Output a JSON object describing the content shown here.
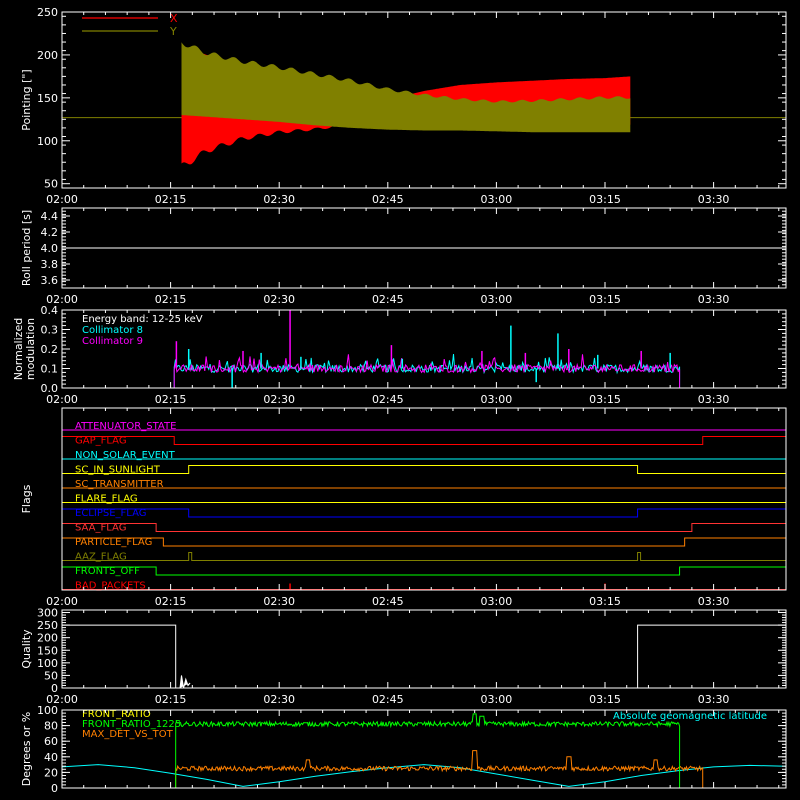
{
  "time_ticks": [
    "02:00",
    "02:15",
    "02:30",
    "02:45",
    "03:00",
    "03:15",
    "03:30"
  ],
  "time_range_minutes": [
    0,
    100
  ],
  "panels": [
    {
      "id": "pointing",
      "ylabel": "Pointing [\"]",
      "ylim": [
        45,
        250
      ],
      "yticks": [
        50,
        100,
        150,
        200,
        250
      ],
      "legend": [
        {
          "label": "X",
          "color": "#ff0000"
        },
        {
          "label": "Y",
          "color": "#808000"
        }
      ],
      "baseline": 127,
      "envelope_start_min": 16.5,
      "envelope_end_min": 78.5,
      "x_series": {
        "name": "X",
        "color": "#ff0000",
        "upper": [
          [
            16.5,
            210
          ],
          [
            20,
            200
          ],
          [
            25,
            185
          ],
          [
            30,
            175
          ],
          [
            35,
            165
          ],
          [
            40,
            155
          ],
          [
            45,
            148
          ],
          [
            50,
            158
          ],
          [
            55,
            165
          ],
          [
            60,
            168
          ],
          [
            65,
            170
          ],
          [
            70,
            172
          ],
          [
            75,
            173
          ],
          [
            78.5,
            175
          ]
        ],
        "lower": [
          [
            16.5,
            65
          ],
          [
            20,
            85
          ],
          [
            25,
            100
          ],
          [
            30,
            108
          ],
          [
            35,
            112
          ],
          [
            40,
            118
          ],
          [
            45,
            120
          ],
          [
            50,
            118
          ],
          [
            55,
            120
          ],
          [
            60,
            122
          ],
          [
            65,
            120
          ],
          [
            70,
            118
          ],
          [
            75,
            120
          ],
          [
            78.5,
            118
          ]
        ]
      },
      "y_series": {
        "name": "Y",
        "color": "#808000",
        "upper": [
          [
            16.5,
            218
          ],
          [
            20,
            205
          ],
          [
            25,
            195
          ],
          [
            30,
            188
          ],
          [
            35,
            180
          ],
          [
            40,
            172
          ],
          [
            45,
            162
          ],
          [
            50,
            155
          ],
          [
            55,
            150
          ],
          [
            60,
            147
          ],
          [
            65,
            148
          ],
          [
            70,
            150
          ],
          [
            75,
            152
          ],
          [
            78.5,
            152
          ]
        ],
        "lower": [
          [
            16.5,
            130
          ],
          [
            20,
            128
          ],
          [
            25,
            125
          ],
          [
            30,
            122
          ],
          [
            35,
            118
          ],
          [
            40,
            115
          ],
          [
            45,
            113
          ],
          [
            50,
            112
          ],
          [
            55,
            112
          ],
          [
            60,
            111
          ],
          [
            65,
            110
          ],
          [
            70,
            110
          ],
          [
            75,
            110
          ],
          [
            78.5,
            110
          ]
        ]
      }
    },
    {
      "id": "roll",
      "ylabel": "Roll period [s]",
      "ylim": [
        3.5,
        4.5
      ],
      "yticks": [
        3.6,
        3.8,
        4.0,
        4.2,
        4.4
      ],
      "value": 4.0
    },
    {
      "id": "modulation",
      "ylabel_lines": [
        "Normalized",
        "modulation"
      ],
      "ylim": [
        0,
        0.4
      ],
      "yticks": [
        0.0,
        0.1,
        0.2,
        0.3,
        0.4
      ],
      "annotations": [
        {
          "text": "Energy band: 12-25 keV",
          "color": "#ffffff"
        },
        {
          "text": "Collimator 8",
          "color": "#00ffff"
        },
        {
          "text": "Collimator 9",
          "color": "#ff00ff"
        }
      ],
      "start_min": 15.5,
      "end_min": 85.3,
      "base_level": 0.1,
      "spikes": [
        [
          15.8,
          0.24
        ],
        [
          17.5,
          0.2
        ],
        [
          25,
          0.19
        ],
        [
          27.5,
          0.18
        ],
        [
          31.5,
          0.4
        ],
        [
          33,
          0.16
        ],
        [
          45.5,
          0.22
        ],
        [
          47,
          0.15
        ],
        [
          58,
          0.19
        ],
        [
          62,
          0.32
        ],
        [
          64,
          0.18
        ],
        [
          68.5,
          0.28
        ],
        [
          70,
          0.2
        ],
        [
          74,
          0.17
        ],
        [
          80,
          0.19
        ],
        [
          84,
          0.18
        ]
      ],
      "dips": [
        [
          23.5,
          0.0
        ],
        [
          65.5,
          0.03
        ]
      ]
    },
    {
      "id": "flags",
      "ylabel": "Flags",
      "flags": [
        {
          "label": "ATTENUATOR_STATE",
          "color": "#ff00ff",
          "steps": []
        },
        {
          "label": "GAP_FLAG",
          "color": "#ff0000",
          "steps": [
            [
              15.5,
              0
            ],
            [
              88.5,
              1
            ]
          ]
        },
        {
          "label": "NON_SOLAR_EVENT",
          "color": "#00ffff",
          "steps": []
        },
        {
          "label": "SC_IN_SUNLIGHT",
          "color": "#ffff00",
          "steps": [
            [
              17.5,
              1
            ],
            [
              79.5,
              0
            ]
          ]
        },
        {
          "label": "SC_TRANSMITTER",
          "color": "#ff8000",
          "steps": []
        },
        {
          "label": "FLARE_FLAG",
          "color": "#ffff00",
          "steps": []
        },
        {
          "label": "ECLIPSE_FLAG",
          "color": "#0000ff",
          "steps": [
            [
              17.5,
              0
            ],
            [
              79.5,
              1
            ]
          ]
        },
        {
          "label": "SAA_FLAG",
          "color": "#ff3333",
          "steps": [
            [
              13,
              0
            ],
            [
              87,
              1
            ]
          ]
        },
        {
          "label": "PARTICLE_FLAG",
          "color": "#ff8000",
          "steps": [
            [
              14,
              0
            ],
            [
              86,
              1
            ]
          ]
        },
        {
          "label": "AAZ_FLAG",
          "color": "#808000",
          "pulses": [
            17.5,
            79.5
          ]
        },
        {
          "label": "FRONTS_OFF",
          "color": "#00ff00",
          "steps": [
            [
              13,
              0
            ],
            [
              85.3,
              1
            ]
          ]
        },
        {
          "label": "BAD_PACKETS",
          "color": "#ff0000",
          "ticks": [
            31.5,
            75
          ]
        }
      ]
    },
    {
      "id": "quality",
      "ylabel": "Quality",
      "ylim": [
        0,
        310
      ],
      "yticks": [
        0,
        50,
        100,
        150,
        200,
        250,
        300
      ],
      "segments": [
        [
          [
            0,
            250
          ],
          [
            15.7,
            250
          ],
          [
            15.7,
            0
          ]
        ],
        [
          [
            79.5,
            0
          ],
          [
            79.5,
            250
          ],
          [
            100,
            250
          ]
        ]
      ],
      "burst": [
        [
          16.5,
          50
        ],
        [
          16.8,
          0
        ],
        [
          17.1,
          35
        ],
        [
          17.4,
          10
        ],
        [
          17.7,
          20
        ]
      ]
    },
    {
      "id": "ratios",
      "ylabel": "Degrees or %",
      "ylim": [
        0,
        100
      ],
      "yticks": [
        0,
        20,
        40,
        60,
        80,
        100
      ],
      "legend": [
        {
          "label": "FRONT_RATIO",
          "color": "#ffff00"
        },
        {
          "label": "FRONT_RATIO_1225",
          "color": "#00ff00"
        },
        {
          "label": "MAX_DET_VS_TOT",
          "color": "#ff8000"
        }
      ],
      "right_label": {
        "text": "Absolute geomagnetic latitude",
        "color": "#00ffff"
      },
      "front_ratio_1225": {
        "start": 15.7,
        "end": 85.3,
        "level": 82,
        "noise": 3,
        "spikes": [
          [
            57,
            95
          ],
          [
            58,
            92
          ]
        ]
      },
      "max_det": {
        "start": 15.7,
        "end": 88.5,
        "level": 25,
        "noise": 3,
        "spikes": [
          [
            34,
            36
          ],
          [
            57,
            48
          ],
          [
            70,
            40
          ],
          [
            82,
            36
          ]
        ]
      },
      "latitude": [
        [
          0,
          27
        ],
        [
          5,
          30
        ],
        [
          10,
          26
        ],
        [
          15,
          19
        ],
        [
          20,
          11
        ],
        [
          25,
          2
        ],
        [
          30,
          8
        ],
        [
          35,
          15
        ],
        [
          40,
          21
        ],
        [
          45,
          26
        ],
        [
          50,
          30
        ],
        [
          55,
          26
        ],
        [
          60,
          18
        ],
        [
          65,
          10
        ],
        [
          70,
          2
        ],
        [
          75,
          8
        ],
        [
          80,
          16
        ],
        [
          85,
          22
        ],
        [
          90,
          27
        ],
        [
          95,
          29
        ],
        [
          100,
          28
        ]
      ]
    }
  ]
}
